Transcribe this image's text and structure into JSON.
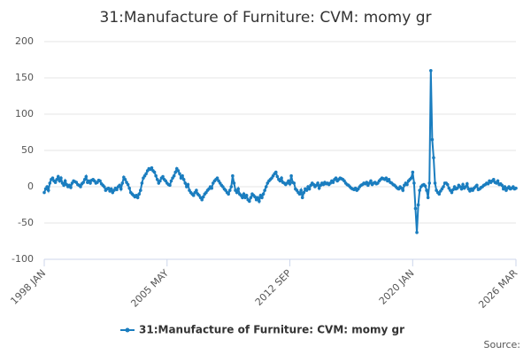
{
  "chart_data": {
    "type": "line",
    "title": "31:Manufacture of Furniture: CVM: momy gr",
    "source": "Source:",
    "categories": [
      "1998 JAN",
      null,
      null,
      null,
      null,
      null,
      null,
      null,
      null,
      null,
      null,
      null,
      null,
      null,
      null,
      null,
      null,
      null,
      null,
      null,
      null,
      null,
      null,
      null,
      null,
      null,
      null,
      null,
      null,
      null,
      null,
      null,
      null,
      null,
      null,
      null,
      null,
      null,
      null,
      null,
      null,
      null,
      null,
      null,
      null,
      null,
      null,
      null,
      null,
      null,
      null,
      null,
      null,
      null,
      null,
      null,
      null,
      null,
      null,
      null,
      null,
      null,
      null,
      null,
      null,
      null,
      null,
      null,
      null,
      null,
      null,
      null,
      null,
      null,
      null,
      null,
      null,
      null,
      null,
      null,
      null,
      null,
      null,
      null,
      null,
      null,
      null,
      null,
      "2005 MAY",
      null,
      null,
      null,
      null,
      null,
      null,
      null,
      null,
      null,
      null,
      null,
      null,
      null,
      null,
      null,
      null,
      null,
      null,
      null,
      null,
      null,
      null,
      null,
      null,
      null,
      null,
      null,
      null,
      null,
      null,
      null,
      null,
      null,
      null,
      null,
      null,
      null,
      null,
      null,
      null,
      null,
      null,
      null,
      null,
      null,
      null,
      null,
      null,
      null,
      null,
      null,
      null,
      null,
      null,
      null,
      null,
      null,
      null,
      null,
      null,
      null,
      null,
      null,
      null,
      null,
      null,
      null,
      null,
      null,
      null,
      null,
      null,
      null,
      null,
      null,
      null,
      null,
      null,
      null,
      null,
      null,
      null,
      null,
      null,
      null,
      null,
      null,
      "2012 SEP",
      null,
      null,
      null,
      null,
      null,
      null,
      null,
      null,
      null,
      null,
      null,
      null,
      null,
      null,
      null,
      null,
      null,
      null,
      null,
      null,
      null,
      null,
      null,
      null,
      null,
      null,
      null,
      null,
      null,
      null,
      null,
      null,
      null,
      null,
      null,
      null,
      null,
      null,
      null,
      null,
      null,
      null,
      null,
      null,
      null,
      null,
      null,
      null,
      null,
      null,
      null,
      null,
      null,
      null,
      null,
      null,
      null,
      null,
      null,
      null,
      null,
      null,
      null,
      null,
      null,
      null,
      null,
      null,
      null,
      null,
      null,
      null,
      null,
      null,
      null,
      null,
      null,
      null,
      null,
      null,
      null,
      null,
      null,
      null,
      null,
      null,
      null,
      "2020 JAN",
      null,
      null,
      null,
      null,
      null,
      null,
      null,
      null,
      null,
      null,
      null,
      null,
      null,
      null,
      null,
      null,
      null,
      null,
      null,
      null,
      null,
      null,
      null,
      null,
      null,
      null,
      null,
      null,
      null,
      null,
      null,
      null,
      null,
      null,
      null,
      null,
      null,
      null,
      null,
      null,
      null,
      null,
      null,
      null,
      null,
      null,
      null,
      null,
      null,
      null,
      null,
      null,
      null,
      null,
      null,
      null,
      null,
      null,
      null,
      null,
      null,
      null,
      null,
      null,
      null,
      null,
      null,
      null,
      null,
      null,
      null,
      null,
      null,
      "2026 MAR"
    ],
    "series": [
      {
        "name": "31:Manufacture of Furniture: CVM: momy gr",
        "color": "#1a7dbf",
        "values": [
          -8,
          -3,
          0,
          -5,
          5,
          10,
          12,
          8,
          6,
          10,
          14,
          8,
          12,
          5,
          2,
          8,
          3,
          0,
          2,
          -1,
          5,
          8,
          7,
          6,
          3,
          2,
          0,
          4,
          6,
          10,
          14,
          6,
          8,
          5,
          9,
          10,
          8,
          5,
          6,
          9,
          8,
          4,
          2,
          0,
          -5,
          -3,
          -2,
          -6,
          -3,
          -8,
          -5,
          -2,
          -4,
          0,
          2,
          -3,
          5,
          13,
          10,
          6,
          3,
          -2,
          -8,
          -10,
          -12,
          -14,
          -12,
          -15,
          -10,
          -5,
          5,
          12,
          15,
          18,
          22,
          25,
          24,
          26,
          22,
          20,
          15,
          10,
          5,
          8,
          12,
          14,
          10,
          8,
          5,
          3,
          2,
          8,
          12,
          15,
          20,
          25,
          22,
          18,
          12,
          15,
          10,
          5,
          0,
          3,
          -5,
          -8,
          -10,
          -12,
          -8,
          -5,
          -10,
          -12,
          -15,
          -18,
          -14,
          -10,
          -8,
          -5,
          -3,
          0,
          -2,
          5,
          8,
          10,
          12,
          8,
          5,
          2,
          0,
          -3,
          -5,
          -8,
          -10,
          -5,
          0,
          15,
          5,
          -5,
          -8,
          -3,
          -10,
          -12,
          -15,
          -10,
          -15,
          -12,
          -18,
          -20,
          -15,
          -10,
          -12,
          -14,
          -18,
          -15,
          -20,
          -12,
          -15,
          -10,
          -5,
          0,
          5,
          8,
          10,
          12,
          15,
          18,
          20,
          14,
          10,
          8,
          12,
          6,
          5,
          3,
          5,
          8,
          4,
          15,
          6,
          5,
          -3,
          -5,
          -8,
          -10,
          -5,
          -15,
          -8,
          -3,
          -5,
          0,
          -3,
          2,
          5,
          3,
          0,
          2,
          5,
          -2,
          2,
          5,
          3,
          6,
          4,
          5,
          3,
          5,
          8,
          6,
          10,
          12,
          8,
          10,
          12,
          11,
          10,
          8,
          5,
          3,
          2,
          0,
          -2,
          -3,
          -4,
          -2,
          -5,
          -3,
          0,
          2,
          3,
          5,
          4,
          6,
          2,
          5,
          8,
          3,
          5,
          6,
          4,
          5,
          8,
          10,
          12,
          11,
          10,
          12,
          8,
          10,
          6,
          5,
          3,
          2,
          0,
          -2,
          -3,
          0,
          -2,
          -5,
          2,
          5,
          3,
          8,
          10,
          12,
          20,
          5,
          -30,
          -63,
          -25,
          -5,
          0,
          2,
          3,
          1,
          -5,
          -15,
          5,
          160,
          65,
          40,
          5,
          -5,
          -8,
          -10,
          -6,
          -3,
          0,
          5,
          5,
          3,
          -2,
          -5,
          -8,
          -4,
          0,
          -3,
          -2,
          2,
          0,
          -3,
          3,
          -2,
          0,
          4,
          -3,
          -6,
          -3,
          -5,
          -2,
          0,
          2,
          -4,
          -3,
          -1,
          0,
          2,
          3,
          5,
          4,
          8,
          6,
          8,
          10,
          6,
          5,
          8,
          3,
          4,
          2,
          -3,
          0,
          -5,
          -2,
          0,
          -3,
          -2,
          0,
          -3,
          -2
        ]
      }
    ],
    "ylim": [
      -100,
      200
    ],
    "yticks": [
      -100,
      -50,
      0,
      50,
      100,
      150,
      200
    ],
    "grid": true
  }
}
